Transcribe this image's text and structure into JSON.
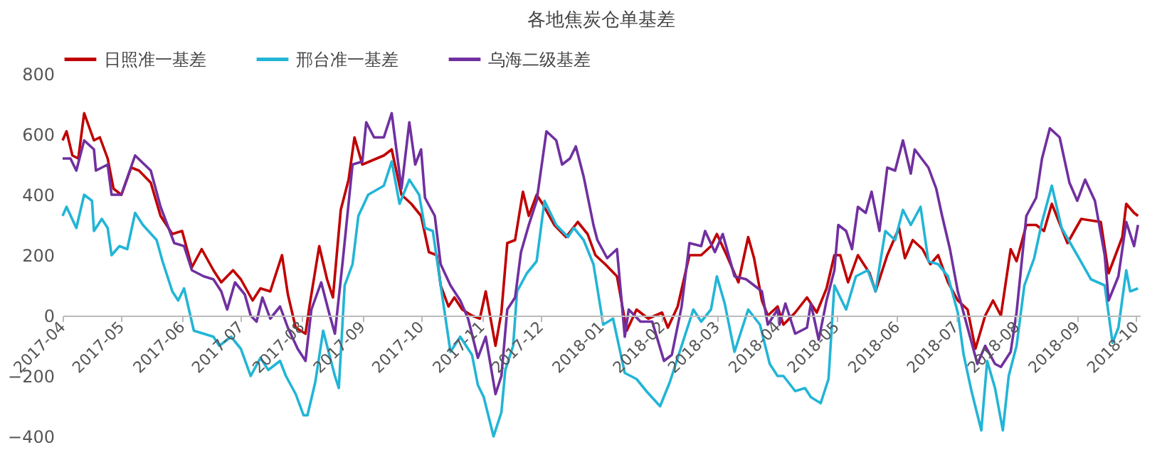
{
  "chart_data": {
    "type": "line",
    "title": "各地焦炭仓单基差",
    "legend": "top",
    "grid": false,
    "xlim": [
      "2017-04-01",
      "2018-10-03"
    ],
    "xticks": [
      {
        "value": "2017-04",
        "label": "2017-04"
      },
      {
        "value": "2017-05",
        "label": "2017-05"
      },
      {
        "value": "2017-06",
        "label": "2017-06"
      },
      {
        "value": "2017-07",
        "label": "2017-07"
      },
      {
        "value": "2017-08",
        "label": "2017-08"
      },
      {
        "value": "2017-09",
        "label": "2017-09"
      },
      {
        "value": "2017-10",
        "label": "2017-10"
      },
      {
        "value": "2017-11",
        "label": "2017-11"
      },
      {
        "value": "2017-12",
        "label": "2017-12"
      },
      {
        "value": "2018-01",
        "label": "2018-01"
      },
      {
        "value": "2018-02",
        "label": "2018-02"
      },
      {
        "value": "2018-03",
        "label": "2018-03"
      },
      {
        "value": "2018-04",
        "label": "2018-04"
      },
      {
        "value": "2018-05",
        "label": "2018-05"
      },
      {
        "value": "2018-06",
        "label": "2018-06"
      },
      {
        "value": "2018-07",
        "label": "2018-07"
      },
      {
        "value": "2018-08",
        "label": "2018-08"
      },
      {
        "value": "2018-09",
        "label": "2018-09"
      },
      {
        "value": "2018-10",
        "label": "2018-10"
      }
    ],
    "ylim": [
      -400,
      800
    ],
    "yticks": [
      -400,
      -200,
      0,
      200,
      400,
      600,
      800
    ],
    "series": [
      {
        "name": "日照准一基差",
        "color": "#c00000",
        "x": [
          "2017-04-01",
          "2017-04-03",
          "2017-04-06",
          "2017-04-09",
          "2017-04-12",
          "2017-04-17",
          "2017-04-20",
          "2017-04-24",
          "2017-04-27",
          "2017-05-01",
          "2017-05-06",
          "2017-05-10",
          "2017-05-16",
          "2017-05-21",
          "2017-05-27",
          "2017-06-01",
          "2017-06-06",
          "2017-06-11",
          "2017-06-17",
          "2017-06-21",
          "2017-06-27",
          "2017-07-01",
          "2017-07-07",
          "2017-07-11",
          "2017-07-16",
          "2017-07-22",
          "2017-07-25",
          "2017-07-29",
          "2017-08-03",
          "2017-08-05",
          "2017-08-10",
          "2017-08-14",
          "2017-08-17",
          "2017-08-21",
          "2017-08-25",
          "2017-08-28",
          "2017-09-01",
          "2017-09-12",
          "2017-09-16",
          "2017-09-21",
          "2017-09-26",
          "2017-10-01",
          "2017-10-05",
          "2017-10-09",
          "2017-10-11",
          "2017-10-15",
          "2017-10-18",
          "2017-10-22",
          "2017-10-27",
          "2017-10-31",
          "2017-11-03",
          "2017-11-08",
          "2017-11-11",
          "2017-11-14",
          "2017-11-18",
          "2017-11-22",
          "2017-11-25",
          "2017-11-29",
          "2017-12-02",
          "2017-12-08",
          "2017-12-14",
          "2017-12-20",
          "2017-12-25",
          "2017-12-29",
          "2018-01-03",
          "2018-01-09",
          "2018-01-14",
          "2018-01-19",
          "2018-01-25",
          "2018-02-01",
          "2018-02-04",
          "2018-02-09",
          "2018-02-15",
          "2018-02-21",
          "2018-02-26",
          "2018-03-01",
          "2018-03-06",
          "2018-03-12",
          "2018-03-17",
          "2018-03-20",
          "2018-03-24",
          "2018-03-27",
          "2018-04-01",
          "2018-04-04",
          "2018-04-10",
          "2018-04-16",
          "2018-04-21",
          "2018-04-26",
          "2018-04-30",
          "2018-05-03",
          "2018-05-07",
          "2018-05-12",
          "2018-05-18",
          "2018-05-21",
          "2018-05-27",
          "2018-06-02",
          "2018-06-05",
          "2018-06-09",
          "2018-06-14",
          "2018-06-18",
          "2018-06-22",
          "2018-06-27",
          "2018-07-02",
          "2018-07-07",
          "2018-07-11",
          "2018-07-16",
          "2018-07-20",
          "2018-07-24",
          "2018-07-29",
          "2018-08-01",
          "2018-08-06",
          "2018-08-11",
          "2018-08-15",
          "2018-08-19",
          "2018-08-27",
          "2018-09-03",
          "2018-09-13",
          "2018-09-17",
          "2018-09-24",
          "2018-09-26",
          "2018-09-30",
          "2018-10-02"
        ],
        "values": [
          580,
          610,
          530,
          520,
          670,
          580,
          590,
          520,
          420,
          400,
          490,
          480,
          440,
          330,
          270,
          280,
          160,
          220,
          150,
          110,
          150,
          120,
          50,
          90,
          80,
          200,
          70,
          -40,
          -60,
          30,
          230,
          120,
          60,
          350,
          450,
          590,
          500,
          530,
          550,
          400,
          370,
          330,
          210,
          200,
          100,
          30,
          60,
          20,
          0,
          -10,
          80,
          -100,
          10,
          240,
          250,
          410,
          330,
          400,
          370,
          300,
          260,
          310,
          270,
          200,
          170,
          130,
          -50,
          20,
          -10,
          10,
          -40,
          30,
          200,
          200,
          230,
          270,
          200,
          110,
          260,
          190,
          50,
          0,
          30,
          -30,
          10,
          60,
          10,
          90,
          200,
          200,
          110,
          200,
          140,
          80,
          200,
          290,
          190,
          250,
          220,
          170,
          200,
          110,
          50,
          20,
          -110,
          0,
          50,
          0,
          220,
          180,
          300,
          300,
          280,
          370,
          240,
          320,
          310,
          140,
          260,
          370,
          340,
          330
        ]
      },
      {
        "name": "邢台准一基差",
        "color": "#22b5d6",
        "x": [
          "2017-04-01",
          "2017-04-03",
          "2017-04-08",
          "2017-04-12",
          "2017-04-16",
          "2017-04-17",
          "2017-04-21",
          "2017-04-24",
          "2017-04-26",
          "2017-04-30",
          "2017-05-04",
          "2017-05-08",
          "2017-05-12",
          "2017-05-19",
          "2017-05-22",
          "2017-05-27",
          "2017-05-30",
          "2017-06-02",
          "2017-06-07",
          "2017-06-12",
          "2017-06-17",
          "2017-06-20",
          "2017-06-26",
          "2017-07-01",
          "2017-07-06",
          "2017-07-11",
          "2017-07-15",
          "2017-07-21",
          "2017-07-24",
          "2017-07-29",
          "2017-08-02",
          "2017-08-04",
          "2017-08-08",
          "2017-08-12",
          "2017-08-18",
          "2017-08-20",
          "2017-08-23",
          "2017-08-27",
          "2017-08-30",
          "2017-09-04",
          "2017-09-12",
          "2017-09-16",
          "2017-09-20",
          "2017-09-25",
          "2017-09-30",
          "2017-10-03",
          "2017-10-07",
          "2017-10-11",
          "2017-10-16",
          "2017-10-21",
          "2017-10-27",
          "2017-10-30",
          "2017-11-02",
          "2017-11-07",
          "2017-11-11",
          "2017-11-13",
          "2017-11-17",
          "2017-11-19",
          "2017-11-24",
          "2017-11-29",
          "2017-12-03",
          "2017-12-09",
          "2017-12-15",
          "2017-12-18",
          "2017-12-23",
          "2017-12-28",
          "2018-01-02",
          "2018-01-07",
          "2018-01-13",
          "2018-01-19",
          "2018-01-24",
          "2018-01-31",
          "2018-02-05",
          "2018-02-11",
          "2018-02-17",
          "2018-02-21",
          "2018-02-26",
          "2018-03-01",
          "2018-03-05",
          "2018-03-10",
          "2018-03-17",
          "2018-03-23",
          "2018-03-28",
          "2018-04-01",
          "2018-04-04",
          "2018-04-10",
          "2018-04-15",
          "2018-04-18",
          "2018-04-23",
          "2018-04-27",
          "2018-04-30",
          "2018-05-06",
          "2018-05-11",
          "2018-05-17",
          "2018-05-21",
          "2018-05-26",
          "2018-05-31",
          "2018-06-04",
          "2018-06-08",
          "2018-06-13",
          "2018-06-17",
          "2018-06-22",
          "2018-06-27",
          "2018-07-02",
          "2018-07-05",
          "2018-07-09",
          "2018-07-14",
          "2018-07-17",
          "2018-07-21",
          "2018-07-25",
          "2018-07-28",
          "2018-08-01",
          "2018-08-05",
          "2018-08-10",
          "2018-08-14",
          "2018-08-19",
          "2018-08-24",
          "2018-09-01",
          "2018-09-08",
          "2018-09-15",
          "2018-09-19",
          "2018-09-22",
          "2018-09-26",
          "2018-09-28",
          "2018-10-02"
        ],
        "values": [
          330,
          360,
          290,
          400,
          380,
          280,
          320,
          290,
          200,
          230,
          220,
          340,
          300,
          250,
          180,
          80,
          50,
          90,
          -50,
          -60,
          -70,
          -100,
          -70,
          -110,
          -200,
          -140,
          -180,
          -150,
          -200,
          -260,
          -330,
          -330,
          -220,
          -50,
          -200,
          -240,
          100,
          170,
          330,
          400,
          430,
          510,
          370,
          450,
          400,
          290,
          280,
          100,
          -120,
          -70,
          -130,
          -230,
          -270,
          -400,
          -320,
          -180,
          -100,
          80,
          140,
          180,
          380,
          300,
          260,
          290,
          250,
          170,
          -30,
          -10,
          -190,
          -210,
          -250,
          -300,
          -220,
          -100,
          20,
          -20,
          20,
          130,
          40,
          -120,
          20,
          -30,
          -160,
          -200,
          -200,
          -250,
          -240,
          -270,
          -290,
          -210,
          100,
          20,
          130,
          150,
          80,
          280,
          250,
          350,
          300,
          360,
          180,
          170,
          130,
          10,
          -130,
          -250,
          -380,
          -150,
          -240,
          -380,
          -200,
          -100,
          100,
          190,
          310,
          430,
          290,
          200,
          120,
          100,
          -90,
          -40,
          150,
          80,
          90
        ]
      },
      {
        "name": "乌海二级基差",
        "color": "#7030a0",
        "x": [
          "2017-04-01",
          "2017-04-05",
          "2017-04-08",
          "2017-04-12",
          "2017-04-17",
          "2017-04-18",
          "2017-04-24",
          "2017-04-26",
          "2017-05-01",
          "2017-05-08",
          "2017-05-16",
          "2017-05-21",
          "2017-05-28",
          "2017-06-02",
          "2017-06-06",
          "2017-06-12",
          "2017-06-17",
          "2017-06-21",
          "2017-06-24",
          "2017-06-28",
          "2017-07-03",
          "2017-07-06",
          "2017-07-09",
          "2017-07-12",
          "2017-07-16",
          "2017-07-21",
          "2017-07-25",
          "2017-07-30",
          "2017-08-03",
          "2017-08-06",
          "2017-08-11",
          "2017-08-15",
          "2017-08-18",
          "2017-08-22",
          "2017-08-27",
          "2017-09-01",
          "2017-09-03",
          "2017-09-07",
          "2017-09-12",
          "2017-09-16",
          "2017-09-21",
          "2017-09-25",
          "2017-09-28",
          "2017-10-01",
          "2017-10-03",
          "2017-10-08",
          "2017-10-11",
          "2017-10-16",
          "2017-10-21",
          "2017-10-25",
          "2017-10-30",
          "2017-11-03",
          "2017-11-08",
          "2017-11-11",
          "2017-11-14",
          "2017-11-18",
          "2017-11-21",
          "2017-11-25",
          "2017-11-29",
          "2017-12-04",
          "2017-12-09",
          "2017-12-12",
          "2017-12-16",
          "2017-12-19",
          "2017-12-23",
          "2017-12-28",
          "2017-12-30",
          "2018-01-04",
          "2018-01-09",
          "2018-01-13",
          "2018-01-15",
          "2018-01-21",
          "2018-01-27",
          "2018-02-02",
          "2018-02-06",
          "2018-02-11",
          "2018-02-15",
          "2018-02-21",
          "2018-02-23",
          "2018-02-28",
          "2018-03-04",
          "2018-03-10",
          "2018-03-16",
          "2018-03-24",
          "2018-03-27",
          "2018-04-01",
          "2018-04-02",
          "2018-04-05",
          "2018-04-10",
          "2018-04-16",
          "2018-04-18",
          "2018-04-22",
          "2018-04-26",
          "2018-04-30",
          "2018-05-02",
          "2018-05-06",
          "2018-05-09",
          "2018-05-12",
          "2018-05-16",
          "2018-05-19",
          "2018-05-23",
          "2018-05-27",
          "2018-05-31",
          "2018-06-04",
          "2018-06-08",
          "2018-06-10",
          "2018-06-17",
          "2018-06-21",
          "2018-06-24",
          "2018-06-28",
          "2018-07-02",
          "2018-07-07",
          "2018-07-12",
          "2018-07-16",
          "2018-07-21",
          "2018-07-24",
          "2018-07-29",
          "2018-08-01",
          "2018-08-06",
          "2018-08-11",
          "2018-08-14",
          "2018-08-18",
          "2018-08-23",
          "2018-08-28",
          "2018-09-01",
          "2018-09-05",
          "2018-09-10",
          "2018-09-15",
          "2018-09-17",
          "2018-09-22",
          "2018-09-26",
          "2018-09-30",
          "2018-10-02"
        ],
        "values": [
          520,
          520,
          480,
          580,
          550,
          480,
          500,
          400,
          400,
          530,
          480,
          360,
          240,
          230,
          150,
          130,
          120,
          80,
          20,
          110,
          70,
          0,
          -20,
          60,
          -10,
          30,
          -40,
          -110,
          -150,
          20,
          110,
          10,
          -60,
          180,
          500,
          510,
          640,
          590,
          590,
          670,
          420,
          640,
          500,
          550,
          390,
          330,
          170,
          100,
          50,
          -10,
          -140,
          -70,
          -260,
          -200,
          20,
          60,
          210,
          300,
          380,
          610,
          580,
          500,
          520,
          560,
          460,
          300,
          250,
          190,
          220,
          -70,
          20,
          -20,
          -20,
          -150,
          -130,
          30,
          240,
          230,
          280,
          210,
          270,
          130,
          120,
          80,
          -30,
          20,
          -30,
          40,
          -60,
          -40,
          40,
          -80,
          50,
          150,
          300,
          280,
          220,
          360,
          340,
          410,
          280,
          490,
          480,
          580,
          470,
          550,
          490,
          420,
          330,
          220,
          80,
          -40,
          -160,
          -100,
          -160,
          -170,
          -120,
          10,
          330,
          390,
          520,
          620,
          590,
          440,
          380,
          450,
          380,
          200,
          50,
          130,
          310,
          230,
          300
        ]
      }
    ]
  }
}
